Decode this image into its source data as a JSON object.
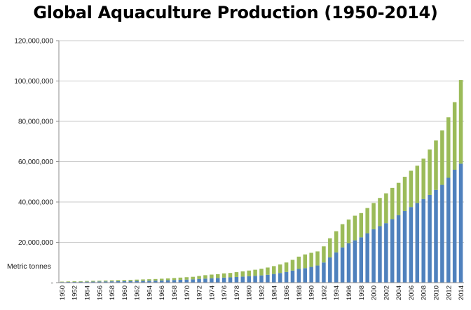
{
  "chart_data": {
    "type": "bar",
    "stacked": true,
    "title": "Global Aquaculture Production (1950-2014)",
    "ylabel": "Metric tonnes",
    "xlabel": "",
    "ylim": [
      0,
      120000000
    ],
    "yticks": [
      0,
      20000000,
      40000000,
      60000000,
      80000000,
      100000000,
      120000000
    ],
    "ytick_labels": [
      "-",
      "20,000,000",
      "40,000,000",
      "60,000,000",
      "80,000,000",
      "100,000,000",
      "120,000,000"
    ],
    "grid": true,
    "legend": "none",
    "categories": [
      "1950",
      "1951",
      "1952",
      "1953",
      "1954",
      "1955",
      "1956",
      "1957",
      "1958",
      "1959",
      "1960",
      "1961",
      "1962",
      "1963",
      "1964",
      "1965",
      "1966",
      "1967",
      "1968",
      "1969",
      "1970",
      "1971",
      "1972",
      "1973",
      "1974",
      "1975",
      "1976",
      "1977",
      "1978",
      "1979",
      "1980",
      "1981",
      "1982",
      "1983",
      "1984",
      "1985",
      "1986",
      "1987",
      "1988",
      "1989",
      "1990",
      "1991",
      "1992",
      "1993",
      "1994",
      "1995",
      "1996",
      "1997",
      "1998",
      "1999",
      "2000",
      "2001",
      "2002",
      "2003",
      "2004",
      "2005",
      "2006",
      "2007",
      "2008",
      "2009",
      "2010",
      "2011",
      "2012",
      "2013",
      "2014"
    ],
    "series": [
      {
        "color": "#4f81bd",
        "values": [
          300000,
          350000,
          400000,
          430000,
          470000,
          500000,
          550000,
          600000,
          650000,
          700000,
          750000,
          800000,
          850000,
          900000,
          950000,
          1000000,
          1100000,
          1200000,
          1300000,
          1400000,
          1500000,
          1600000,
          1800000,
          2000000,
          2200000,
          2300000,
          2500000,
          2600000,
          2800000,
          3000000,
          3200000,
          3400000,
          3600000,
          3900000,
          4300000,
          4800000,
          5300000,
          6000000,
          6800000,
          7200000,
          7800000,
          8500000,
          10000000,
          12500000,
          15000000,
          17500000,
          19500000,
          21000000,
          22500000,
          24500000,
          26500000,
          28000000,
          29500000,
          31500000,
          33500000,
          35500000,
          37500000,
          39500000,
          41500000,
          43500000,
          46000000,
          48500000,
          52000000,
          56000000,
          59000000
        ]
      },
      {
        "color": "#9bbb59",
        "values": [
          200000,
          250000,
          300000,
          300000,
          350000,
          400000,
          400000,
          450000,
          500000,
          550000,
          550000,
          600000,
          650000,
          700000,
          750000,
          800000,
          850000,
          900000,
          1000000,
          1100000,
          1200000,
          1300000,
          1500000,
          1700000,
          1800000,
          1900000,
          2100000,
          2200000,
          2400000,
          2600000,
          2800000,
          3000000,
          3300000,
          3600000,
          3900000,
          4200000,
          4700000,
          5300000,
          6100000,
          6800000,
          7000000,
          7000000,
          8000000,
          9500000,
          10500000,
          11500000,
          11800000,
          12200000,
          12000000,
          12500000,
          13000000,
          14000000,
          14800000,
          15500000,
          16000000,
          17000000,
          18000000,
          18500000,
          20000000,
          22500000,
          24500000,
          27000000,
          30000000,
          33500000,
          41500000
        ]
      }
    ]
  }
}
